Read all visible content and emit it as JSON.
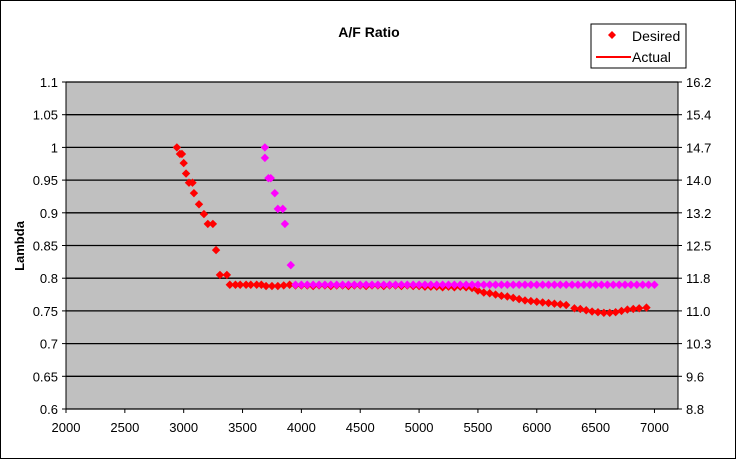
{
  "chart_data": {
    "type": "scatter",
    "title": "A/F Ratio",
    "xlabel": "",
    "ylabel": "Lambda",
    "xlim": [
      2000,
      7200
    ],
    "ylim": [
      0.6,
      1.1
    ],
    "y2lim": [
      8.8,
      16.2
    ],
    "grid": true,
    "legend_position": "top-right",
    "x_ticks": [
      "2000",
      "2500",
      "3000",
      "3500",
      "4000",
      "4500",
      "5000",
      "5500",
      "6000",
      "6500",
      "7000"
    ],
    "y_ticks": [
      "1.1",
      "1.05",
      "1",
      "0.95",
      "0.9",
      "0.85",
      "0.8",
      "0.75",
      "0.7",
      "0.65",
      "0.6"
    ],
    "y2_ticks": [
      "16.2",
      "15.4",
      "14.7",
      "14.0",
      "13.2",
      "12.5",
      "11.8",
      "11.0",
      "10.3",
      "9.6",
      "8.8"
    ],
    "legend": [
      {
        "label": "Desired",
        "marker": "diamond",
        "color": "#FF0000"
      },
      {
        "label": "Actual",
        "marker": "line",
        "color": "#FF0000"
      }
    ],
    "series": [
      {
        "name": "Desired",
        "color": "#FF0000",
        "points": [
          [
            2942,
            1.0
          ],
          [
            2968,
            0.99
          ],
          [
            2985,
            0.99
          ],
          [
            3000,
            0.976
          ],
          [
            3020,
            0.96
          ],
          [
            3045,
            0.946
          ],
          [
            3075,
            0.946
          ],
          [
            3087,
            0.93
          ],
          [
            3130,
            0.913
          ],
          [
            3172,
            0.898
          ],
          [
            3205,
            0.883
          ],
          [
            3248,
            0.883
          ],
          [
            3275,
            0.843
          ],
          [
            3308,
            0.805
          ],
          [
            3367,
            0.805
          ],
          [
            3392,
            0.79
          ],
          [
            3440,
            0.79
          ],
          [
            3480,
            0.79
          ],
          [
            3530,
            0.79
          ],
          [
            3570,
            0.79
          ],
          [
            3620,
            0.79
          ],
          [
            3660,
            0.79
          ],
          [
            3700,
            0.788
          ],
          [
            3750,
            0.788
          ],
          [
            3800,
            0.788
          ],
          [
            3850,
            0.789
          ],
          [
            3900,
            0.79
          ],
          [
            3950,
            0.789
          ],
          [
            4000,
            0.789
          ],
          [
            4050,
            0.789
          ],
          [
            4100,
            0.788
          ],
          [
            4150,
            0.789
          ],
          [
            4200,
            0.789
          ],
          [
            4250,
            0.788
          ],
          [
            4300,
            0.789
          ],
          [
            4350,
            0.789
          ],
          [
            4400,
            0.788
          ],
          [
            4450,
            0.789
          ],
          [
            4500,
            0.789
          ],
          [
            4550,
            0.788
          ],
          [
            4600,
            0.789
          ],
          [
            4650,
            0.789
          ],
          [
            4700,
            0.788
          ],
          [
            4750,
            0.789
          ],
          [
            4800,
            0.789
          ],
          [
            4850,
            0.788
          ],
          [
            4900,
            0.789
          ],
          [
            4950,
            0.788
          ],
          [
            5000,
            0.788
          ],
          [
            5050,
            0.787
          ],
          [
            5100,
            0.787
          ],
          [
            5150,
            0.787
          ],
          [
            5200,
            0.786
          ],
          [
            5250,
            0.787
          ],
          [
            5300,
            0.786
          ],
          [
            5350,
            0.787
          ],
          [
            5400,
            0.786
          ],
          [
            5450,
            0.785
          ],
          [
            5500,
            0.781
          ],
          [
            5550,
            0.778
          ],
          [
            5600,
            0.777
          ],
          [
            5650,
            0.775
          ],
          [
            5700,
            0.773
          ],
          [
            5750,
            0.772
          ],
          [
            5800,
            0.77
          ],
          [
            5850,
            0.768
          ],
          [
            5900,
            0.766
          ],
          [
            5950,
            0.765
          ],
          [
            6000,
            0.764
          ],
          [
            6050,
            0.763
          ],
          [
            6100,
            0.762
          ],
          [
            6150,
            0.761
          ],
          [
            6200,
            0.76
          ],
          [
            6250,
            0.759
          ],
          [
            6320,
            0.754
          ],
          [
            6370,
            0.753
          ],
          [
            6420,
            0.751
          ],
          [
            6470,
            0.749
          ],
          [
            6520,
            0.748
          ],
          [
            6570,
            0.747
          ],
          [
            6620,
            0.747
          ],
          [
            6670,
            0.748
          ],
          [
            6720,
            0.75
          ],
          [
            6770,
            0.752
          ],
          [
            6820,
            0.753
          ],
          [
            6870,
            0.754
          ],
          [
            6932,
            0.755
          ]
        ]
      },
      {
        "name": "",
        "color": "#FF00FF",
        "points": [
          [
            3690,
            1.0
          ],
          [
            3690,
            0.984
          ],
          [
            3720,
            0.953
          ],
          [
            3740,
            0.953
          ],
          [
            3774,
            0.93
          ],
          [
            3800,
            0.906
          ],
          [
            3842,
            0.906
          ],
          [
            3860,
            0.883
          ],
          [
            3910,
            0.82
          ],
          [
            3950,
            0.79
          ],
          [
            4000,
            0.79
          ],
          [
            4050,
            0.79
          ],
          [
            4100,
            0.79
          ],
          [
            4150,
            0.79
          ],
          [
            4200,
            0.79
          ],
          [
            4250,
            0.79
          ],
          [
            4300,
            0.79
          ],
          [
            4350,
            0.79
          ],
          [
            4400,
            0.79
          ],
          [
            4450,
            0.79
          ],
          [
            4500,
            0.79
          ],
          [
            4550,
            0.79
          ],
          [
            4600,
            0.79
          ],
          [
            4650,
            0.79
          ],
          [
            4700,
            0.79
          ],
          [
            4750,
            0.79
          ],
          [
            4800,
            0.79
          ],
          [
            4850,
            0.79
          ],
          [
            4900,
            0.79
          ],
          [
            4950,
            0.79
          ],
          [
            5000,
            0.79
          ],
          [
            5050,
            0.79
          ],
          [
            5100,
            0.79
          ],
          [
            5150,
            0.79
          ],
          [
            5200,
            0.79
          ],
          [
            5250,
            0.79
          ],
          [
            5300,
            0.79
          ],
          [
            5350,
            0.79
          ],
          [
            5400,
            0.79
          ],
          [
            5450,
            0.79
          ],
          [
            5500,
            0.79
          ],
          [
            5550,
            0.79
          ],
          [
            5600,
            0.79
          ],
          [
            5650,
            0.79
          ],
          [
            5700,
            0.79
          ],
          [
            5750,
            0.79
          ],
          [
            5800,
            0.79
          ],
          [
            5850,
            0.79
          ],
          [
            5900,
            0.79
          ],
          [
            5950,
            0.79
          ],
          [
            6000,
            0.79
          ],
          [
            6050,
            0.79
          ],
          [
            6100,
            0.79
          ],
          [
            6150,
            0.79
          ],
          [
            6200,
            0.79
          ],
          [
            6250,
            0.79
          ],
          [
            6300,
            0.79
          ],
          [
            6350,
            0.79
          ],
          [
            6400,
            0.79
          ],
          [
            6450,
            0.79
          ],
          [
            6500,
            0.79
          ],
          [
            6550,
            0.79
          ],
          [
            6600,
            0.79
          ],
          [
            6650,
            0.79
          ],
          [
            6700,
            0.79
          ],
          [
            6750,
            0.79
          ],
          [
            6800,
            0.79
          ],
          [
            6850,
            0.79
          ],
          [
            6900,
            0.79
          ],
          [
            6950,
            0.79
          ],
          [
            7000,
            0.79
          ]
        ]
      }
    ]
  }
}
